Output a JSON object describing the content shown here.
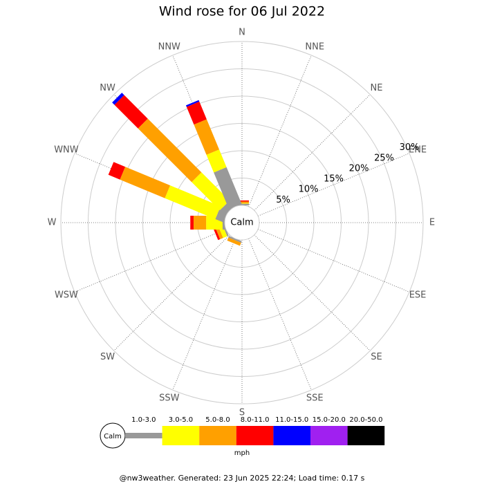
{
  "chart_data": {
    "type": "windrose",
    "title": "Wind rose for 06 Jul 2022",
    "directions": [
      "N",
      "NNE",
      "NE",
      "ENE",
      "E",
      "ESE",
      "SE",
      "SSE",
      "S",
      "SSW",
      "SW",
      "WSW",
      "W",
      "WNW",
      "NW",
      "NNW"
    ],
    "series": [
      {
        "name": "1.0-3.0",
        "color": "#999999",
        "values": [
          0.3,
          0,
          0,
          0,
          0,
          0,
          0,
          0,
          0,
          0.3,
          0,
          0.3,
          0.4,
          1.6,
          1.3,
          7.3
        ]
      },
      {
        "name": "3.0-5.0",
        "color": "#ffff00",
        "values": [
          0.1,
          0,
          0,
          0,
          0,
          0,
          0,
          0,
          0,
          0,
          0,
          0.8,
          3.0,
          10,
          7.3,
          3.5
        ]
      },
      {
        "name": "5.0-8.0",
        "color": "#ffa000",
        "values": [
          0.3,
          0,
          0,
          0,
          0,
          0,
          0,
          0,
          0,
          0.6,
          0,
          0.6,
          2.3,
          8.9,
          13.9,
          6.0
        ]
      },
      {
        "name": "8.0-11.0",
        "color": "#ff0000",
        "values": [
          0.2,
          0,
          0,
          0,
          0,
          0,
          0,
          0,
          0,
          0,
          0,
          0.4,
          0.6,
          2.3,
          6.1,
          3.5
        ]
      },
      {
        "name": "11.0-15.0",
        "color": "#0000ff",
        "values": [
          0,
          0,
          0,
          0,
          0,
          0,
          0,
          0,
          0,
          0,
          0,
          0,
          0,
          0,
          0.6,
          0.3
        ]
      },
      {
        "name": "15.0-20.0",
        "color": "#a020f0",
        "values": [
          0,
          0,
          0,
          0,
          0,
          0,
          0,
          0,
          0,
          0,
          0,
          0,
          0,
          0,
          0,
          0
        ]
      },
      {
        "name": "20.0-50.0",
        "color": "#000000",
        "values": [
          0,
          0,
          0,
          0,
          0,
          0,
          0,
          0,
          0,
          0,
          0,
          0,
          0,
          0,
          0,
          0
        ]
      }
    ],
    "rlim": [
      0,
      30
    ],
    "rticks": [
      {
        "value": 5,
        "label": "5%"
      },
      {
        "value": 10,
        "label": "10%"
      },
      {
        "value": 15,
        "label": "15%"
      },
      {
        "value": 20,
        "label": "20%"
      },
      {
        "value": 25,
        "label": "25%"
      },
      {
        "value": 30,
        "label": "30%"
      }
    ],
    "calm_label": "Calm",
    "unit_label": "mph"
  },
  "footer": "@nw3weather. Generated: 23 Jun 2025 22:24; Load time: 0.17 s"
}
